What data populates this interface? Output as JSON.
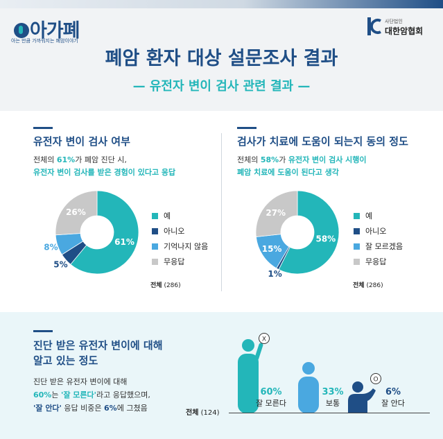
{
  "brand": {
    "logo_text": "아가폐",
    "logo_sub": "아는 만큼 가까워지는 폐암이야기",
    "assoc_small": "사단법인",
    "assoc_name": "대한암협회"
  },
  "header": {
    "title": "폐암 환자 대상 설문조사 결과",
    "subtitle": "— 유전자 변이 검사 관련 결과 —"
  },
  "colors": {
    "teal": "#23b6b9",
    "navy": "#1f4e86",
    "light_blue": "#4aa8e0",
    "gray": "#c8c8c8"
  },
  "section1": {
    "title": "유전자 변이 검사 여부",
    "desc_1a": "전체의 ",
    "desc_1b": "61%",
    "desc_1c": "가 폐암 진단 시,",
    "desc_2": "유전자 변이 검사를 받은 경험이 있다고 응답",
    "total_label": "전체",
    "total_n": "(286)"
  },
  "section2": {
    "title": "검사가 치료에 도움이 되는지 동의 정도",
    "desc_1a": "전체의 ",
    "desc_1b": "58%",
    "desc_1c": "가 ",
    "desc_1d": "유전자 변이 검사 시행이",
    "desc_2": "폐암 치료에 도움이 된다고 생각",
    "total_label": "전체",
    "total_n": "(286)"
  },
  "section3": {
    "title_1": "진단 받은 유전자 변이에 대해",
    "title_2": "알고 있는 정도",
    "desc_1": "진단 받은 유전자 변이에 대해",
    "desc_2a": "60%",
    "desc_2b": "는 ",
    "desc_2c": "'잘 모른다'",
    "desc_2d": "라고 응답했으며,",
    "desc_3a": "'잘 안다'",
    "desc_3b": " 응답 비중은 ",
    "desc_3c": "6%",
    "desc_3d": "에 그쳤음",
    "total_label": "전체",
    "total_n": "(124)",
    "sign_x": "X",
    "sign_o": "O"
  },
  "chart_data": [
    {
      "type": "pie",
      "title": "유전자 변이 검사 여부",
      "categories": [
        "예",
        "아니오",
        "기억나지 않음",
        "무응답"
      ],
      "values": [
        61,
        5,
        8,
        26
      ],
      "labels": [
        "61%",
        "5%",
        "8%",
        "26%"
      ],
      "unit": "%",
      "legend": "right",
      "colors": [
        "#23b6b9",
        "#1f4e86",
        "#4aa8e0",
        "#c8c8c8"
      ]
    },
    {
      "type": "pie",
      "title": "검사가 치료에 도움이 되는지 동의 정도",
      "categories": [
        "예",
        "아니오",
        "잘 모르겠음",
        "무응답"
      ],
      "values": [
        58,
        1,
        15,
        27
      ],
      "labels": [
        "58%",
        "1%",
        "15%",
        "27%"
      ],
      "unit": "%",
      "legend": "right",
      "colors": [
        "#23b6b9",
        "#1f4e86",
        "#4aa8e0",
        "#c8c8c8"
      ]
    },
    {
      "type": "bar",
      "title": "진단 받은 유전자 변이에 대해 알고 있는 정도",
      "categories": [
        "잘 모른다",
        "보통",
        "잘 안다"
      ],
      "values": [
        60,
        33,
        6
      ],
      "labels": [
        "60%",
        "33%",
        "6%"
      ],
      "unit": "%",
      "colors": [
        "#23b6b9",
        "#4aa8e0",
        "#1f4e86"
      ]
    }
  ]
}
